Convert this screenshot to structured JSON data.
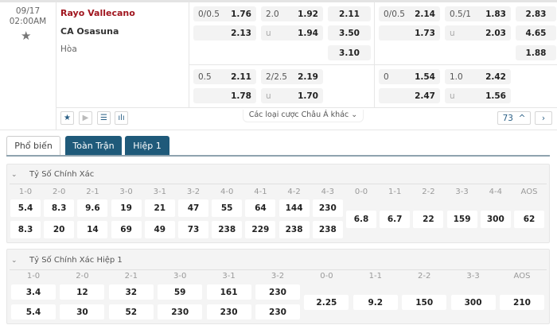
{
  "match": {
    "date": "09/17",
    "time": "02:00AM",
    "home": "Rayo Vallecano",
    "away": "CA Osasuna",
    "draw": "Hòa",
    "home_color": "#a0151e"
  },
  "ft": {
    "hdp": {
      "line": "0/0.5",
      "home": "1.76",
      "away": "2.13"
    },
    "ou": {
      "line": "2.0",
      "over": "1.92",
      "u": "u",
      "under": "1.94"
    },
    "x12": [
      "2.11",
      "3.50",
      "3.10"
    ],
    "hdp2": {
      "line": "0.5",
      "home": "2.11",
      "away": "1.78"
    },
    "ou2": {
      "line": "2/2.5",
      "over": "2.19",
      "u": "u",
      "under": "1.70"
    }
  },
  "h1": {
    "hdp": {
      "line": "0/0.5",
      "home": "2.14",
      "away": "1.73"
    },
    "ou": {
      "line": "0.5/1",
      "over": "1.83",
      "u": "u",
      "under": "2.03"
    },
    "x12": [
      "2.83",
      "4.65",
      "1.88"
    ],
    "hdp2": {
      "line": "0",
      "home": "1.54",
      "away": "2.47"
    },
    "ou2": {
      "line": "1.0",
      "over": "2.42",
      "u": "u",
      "under": "1.56"
    }
  },
  "toolbar": {
    "other_label": "Các loại cược Châu Á khác",
    "count": "73",
    "icons": [
      "star-icon",
      "play-icon",
      "lineup-icon",
      "stats-icon"
    ]
  },
  "tabs": [
    {
      "label": "Phổ biến",
      "active": true
    },
    {
      "label": "Toàn Trận",
      "active": false
    },
    {
      "label": "Hiệp 1",
      "active": false
    }
  ],
  "correct_score": {
    "title": "Tỷ Số Chính Xác",
    "home_away": [
      {
        "label": "1-0",
        "home": "5.4",
        "away": "8.3"
      },
      {
        "label": "2-0",
        "home": "8.3",
        "away": "20"
      },
      {
        "label": "2-1",
        "home": "9.6",
        "away": "14"
      },
      {
        "label": "3-0",
        "home": "19",
        "away": "69"
      },
      {
        "label": "3-1",
        "home": "21",
        "away": "49"
      },
      {
        "label": "3-2",
        "home": "47",
        "away": "73"
      },
      {
        "label": "4-0",
        "home": "55",
        "away": "238"
      },
      {
        "label": "4-1",
        "home": "64",
        "away": "229"
      },
      {
        "label": "4-2",
        "home": "144",
        "away": "238"
      },
      {
        "label": "4-3",
        "home": "230",
        "away": "238"
      }
    ],
    "draws": [
      {
        "label": "0-0",
        "value": "6.8"
      },
      {
        "label": "1-1",
        "value": "6.7"
      },
      {
        "label": "2-2",
        "value": "22"
      },
      {
        "label": "3-3",
        "value": "159"
      },
      {
        "label": "4-4",
        "value": "300"
      },
      {
        "label": "AOS",
        "value": "62"
      }
    ]
  },
  "correct_score_h1": {
    "title": "Tỷ Số Chính Xác Hiệp 1",
    "home_away": [
      {
        "label": "1-0",
        "home": "3.4",
        "away": "5.4"
      },
      {
        "label": "2-0",
        "home": "12",
        "away": "30"
      },
      {
        "label": "2-1",
        "home": "32",
        "away": "52"
      },
      {
        "label": "3-0",
        "home": "59",
        "away": "230"
      },
      {
        "label": "3-1",
        "home": "161",
        "away": "230"
      },
      {
        "label": "3-2",
        "home": "230",
        "away": "230"
      }
    ],
    "draws": [
      {
        "label": "0-0",
        "value": "2.25"
      },
      {
        "label": "1-1",
        "value": "9.2"
      },
      {
        "label": "2-2",
        "value": "150"
      },
      {
        "label": "3-3",
        "value": "300"
      },
      {
        "label": "AOS",
        "value": "210"
      }
    ]
  }
}
